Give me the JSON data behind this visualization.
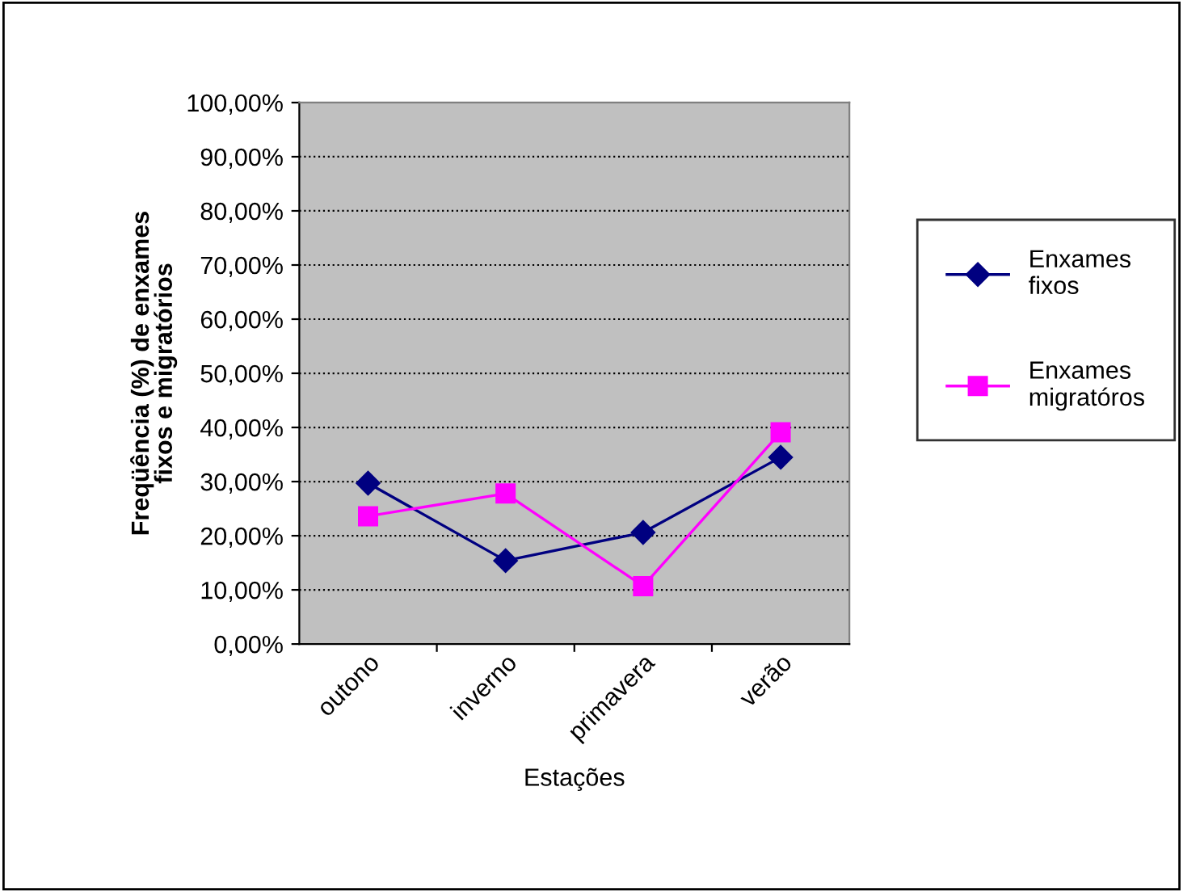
{
  "chart_data": {
    "type": "line",
    "xlabel": "Estações",
    "ylabel": "Freqüência (%) de enxames\nfixos e migratórios",
    "categories": [
      "outono",
      "inverno",
      "primavera",
      "verão"
    ],
    "series": [
      {
        "name": "Enxames\nfixos",
        "color": "#000080",
        "marker": "diamond",
        "values": [
          29.7,
          15.4,
          20.6,
          34.5
        ]
      },
      {
        "name": "Enxames\nmigratóros",
        "color": "#ff00ff",
        "marker": "square",
        "values": [
          23.6,
          27.8,
          10.7,
          39.1
        ]
      }
    ],
    "ylim": [
      0,
      100
    ],
    "yticks": [
      {
        "value": 0,
        "label": "0,00%"
      },
      {
        "value": 10,
        "label": "10,00%"
      },
      {
        "value": 20,
        "label": "20,00%"
      },
      {
        "value": 30,
        "label": "30,00%"
      },
      {
        "value": 40,
        "label": "40,00%"
      },
      {
        "value": 50,
        "label": "50,00%"
      },
      {
        "value": 60,
        "label": "60,00%"
      },
      {
        "value": 70,
        "label": "70,00%"
      },
      {
        "value": 80,
        "label": "80,00%"
      },
      {
        "value": 90,
        "label": "90,00%"
      },
      {
        "value": 100,
        "label": "100,00%"
      }
    ],
    "grid": "y",
    "legend": "right",
    "line_style": "solid"
  }
}
